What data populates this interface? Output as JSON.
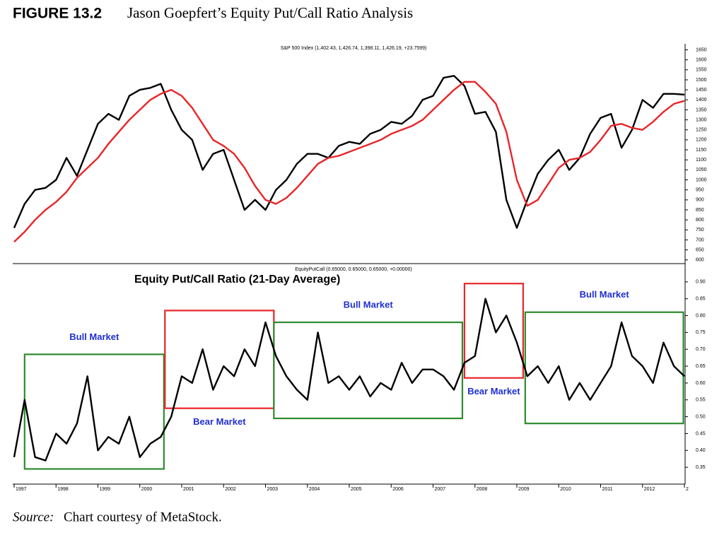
{
  "figure_label": "FIGURE 13.2",
  "figure_title": "Jason Goepfert’s Equity Put/Call Ratio Analysis",
  "source_label": "Source:",
  "source_text": "Chart courtesy of MetaStock.",
  "chart_data": [
    {
      "type": "line",
      "title": "S&P 500 Index (1,402.43, 1,426.74, 1,398.11, 1,426.19, +23.7599)",
      "ylim": [
        585,
        1680
      ],
      "yticks": [
        600,
        650,
        700,
        750,
        800,
        850,
        900,
        950,
        1000,
        1050,
        1100,
        1150,
        1200,
        1250,
        1300,
        1350,
        1400,
        1450,
        1500,
        1550,
        1600,
        1650
      ],
      "series": [
        {
          "color": "#000000",
          "values": [
            760,
            880,
            950,
            960,
            1000,
            1110,
            1020,
            1150,
            1280,
            1330,
            1300,
            1420,
            1450,
            1460,
            1480,
            1350,
            1250,
            1200,
            1050,
            1130,
            1150,
            1000,
            850,
            900,
            850,
            950,
            1000,
            1080,
            1130,
            1130,
            1110,
            1170,
            1190,
            1180,
            1230,
            1250,
            1290,
            1280,
            1320,
            1400,
            1420,
            1510,
            1520,
            1470,
            1330,
            1340,
            1240,
            900,
            760,
            900,
            1030,
            1100,
            1150,
            1050,
            1110,
            1230,
            1310,
            1330,
            1160,
            1250,
            1400,
            1360,
            1430,
            1430,
            1426
          ]
        },
        {
          "color": "#e8262a",
          "values": [
            690,
            740,
            800,
            850,
            890,
            940,
            1010,
            1060,
            1110,
            1180,
            1240,
            1300,
            1350,
            1400,
            1430,
            1450,
            1420,
            1360,
            1280,
            1200,
            1170,
            1130,
            1060,
            970,
            900,
            880,
            910,
            960,
            1020,
            1080,
            1110,
            1120,
            1140,
            1160,
            1180,
            1200,
            1230,
            1250,
            1270,
            1300,
            1350,
            1400,
            1450,
            1490,
            1490,
            1440,
            1380,
            1240,
            1000,
            870,
            900,
            980,
            1060,
            1100,
            1110,
            1140,
            1200,
            1270,
            1280,
            1260,
            1250,
            1290,
            1340,
            1380,
            1395
          ]
        }
      ]
    },
    {
      "type": "line",
      "title": "EquityPutCall (0.65000, 0.65000, 0.65000, +0.00000)",
      "subtitle": "Equity Put/Call Ratio (21-Day Average)",
      "categories": [
        "1997",
        null,
        null,
        null,
        "1998",
        null,
        null,
        null,
        "1999",
        null,
        null,
        null,
        "2000",
        null,
        null,
        null,
        "2001",
        null,
        null,
        null,
        "2002",
        null,
        null,
        null,
        "2003",
        null,
        null,
        null,
        "2004",
        null,
        null,
        null,
        "2005",
        null,
        null,
        null,
        "2006",
        null,
        null,
        null,
        "2007",
        null,
        null,
        null,
        "2008",
        null,
        null,
        null,
        "2009",
        null,
        null,
        null,
        "2010",
        null,
        null,
        null,
        "2011",
        null,
        null,
        null,
        "2012",
        null,
        null,
        null,
        "2"
      ],
      "ylim": [
        0.3,
        0.95
      ],
      "yticks": [
        0.35,
        {
          "value": 0.4,
          "label": "0.40"
        },
        0.45,
        {
          "value": 0.5,
          "label": "0.50"
        },
        0.55,
        {
          "value": 0.6,
          "label": "0.60"
        },
        0.65,
        {
          "value": 0.7,
          "label": "0.70"
        },
        0.75,
        {
          "value": 0.8,
          "label": "0.80"
        },
        0.85,
        {
          "value": 0.9,
          "label": "0.90"
        }
      ],
      "series": [
        {
          "color": "#000000",
          "values": [
            0.38,
            0.55,
            0.38,
            0.37,
            0.45,
            0.42,
            0.48,
            0.62,
            0.4,
            0.44,
            0.42,
            0.5,
            0.38,
            0.42,
            0.44,
            0.5,
            0.62,
            0.6,
            0.7,
            0.58,
            0.65,
            0.62,
            0.7,
            0.65,
            0.78,
            0.68,
            0.62,
            0.58,
            0.55,
            0.75,
            0.6,
            0.62,
            0.58,
            0.62,
            0.56,
            0.6,
            0.58,
            0.66,
            0.6,
            0.64,
            0.64,
            0.62,
            0.58,
            0.66,
            0.68,
            0.85,
            0.75,
            0.8,
            0.72,
            0.62,
            0.65,
            0.6,
            0.65,
            0.55,
            0.6,
            0.55,
            0.6,
            0.65,
            0.78,
            0.68,
            0.65,
            0.6,
            0.72,
            0.65,
            0.62
          ]
        }
      ],
      "regions": [
        {
          "label": "Bull Market",
          "color": "#2e8b2e",
          "x0": 1,
          "x1": 14.3,
          "y0": 0.345,
          "y1": 0.685,
          "label_position": "above"
        },
        {
          "label": "Bear Market",
          "color": "#e8262a",
          "x0": 14.4,
          "x1": 24.8,
          "y0": 0.525,
          "y1": 0.815,
          "label_position": "below"
        },
        {
          "label": "Bull Market",
          "color": "#2e8b2e",
          "x0": 24.8,
          "x1": 42.8,
          "y0": 0.495,
          "y1": 0.78,
          "label_position": "above"
        },
        {
          "label": "Bear Market",
          "color": "#e8262a",
          "x0": 43,
          "x1": 48.6,
          "y0": 0.615,
          "y1": 0.895,
          "label_position": "below"
        },
        {
          "label": "Bull Market",
          "color": "#2e8b2e",
          "x0": 48.8,
          "x1": 63.9,
          "y0": 0.48,
          "y1": 0.81,
          "label_position": "above"
        }
      ]
    }
  ]
}
